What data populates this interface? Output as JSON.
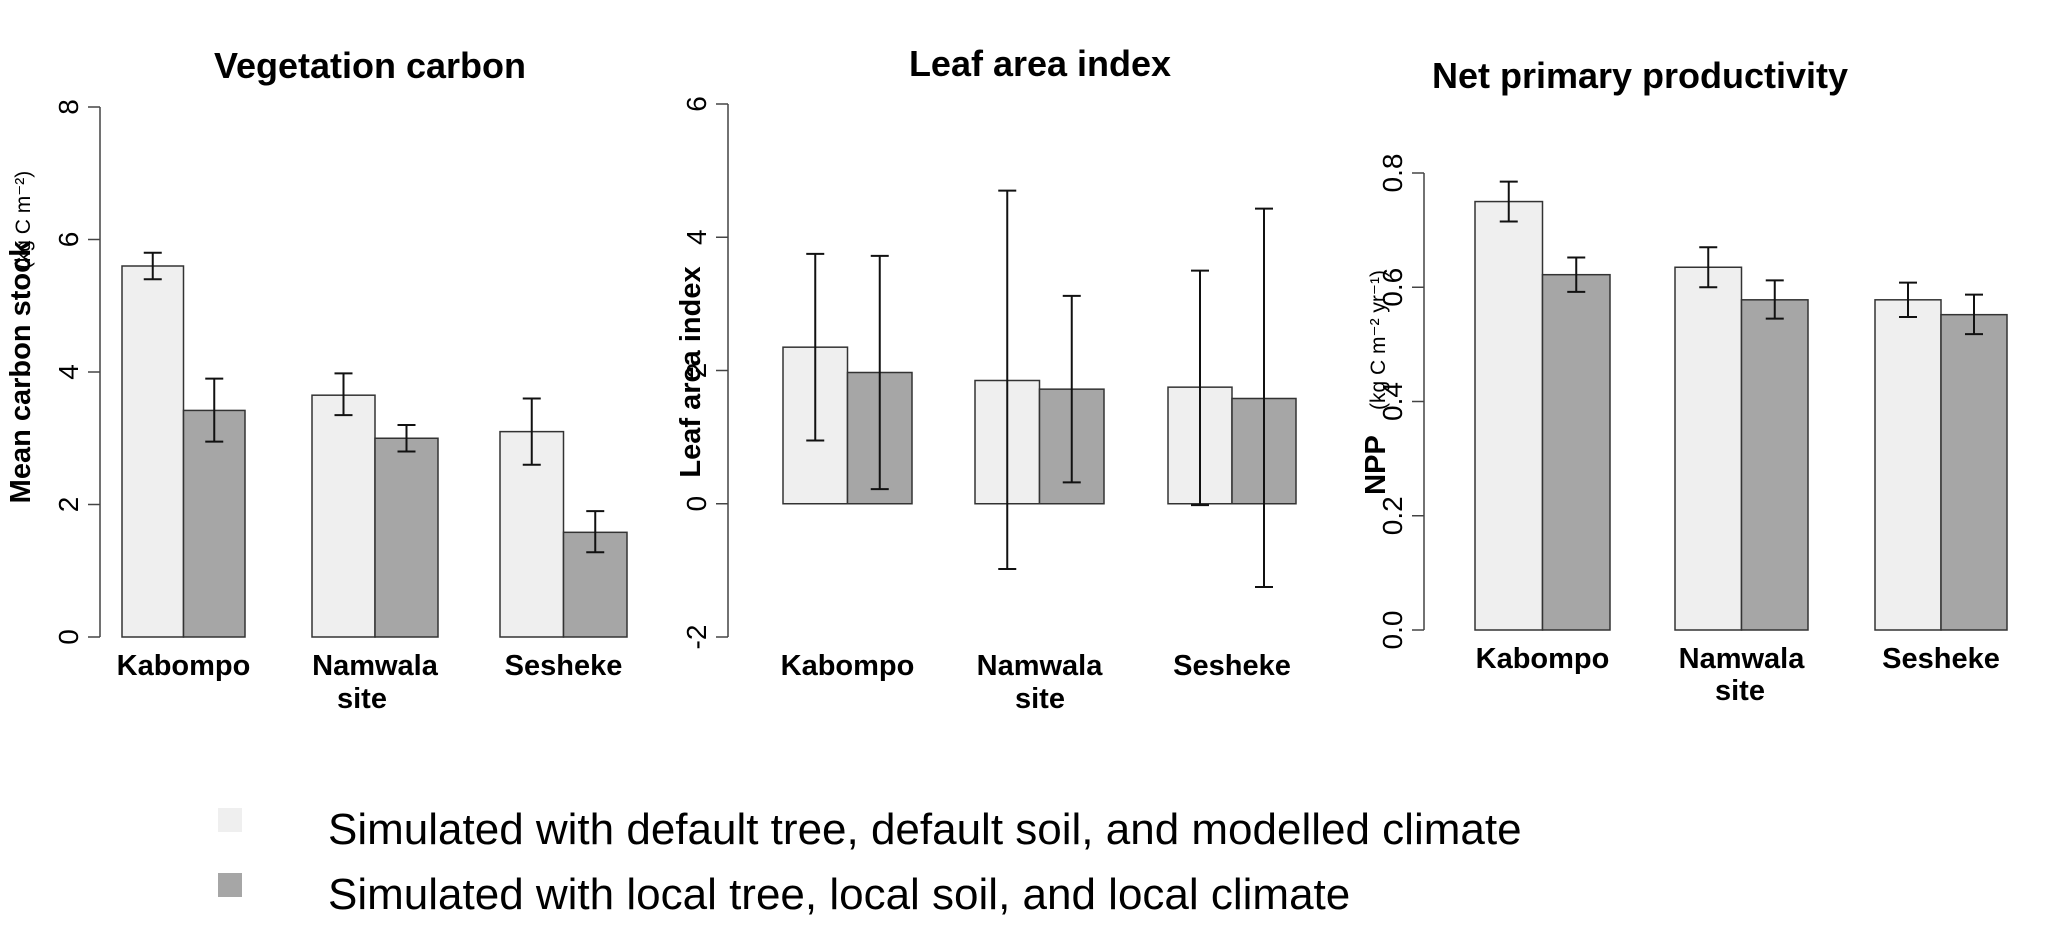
{
  "colors": {
    "default_fill": "#efefef",
    "local_fill": "#a6a6a6",
    "stroke": "#333333"
  },
  "legend": {
    "items": [
      {
        "label": "Simulated with default tree, default soil, and modelled climate",
        "color": "#efefef"
      },
      {
        "label": "Simulated with local tree, local soil, and local climate",
        "color": "#a6a6a6"
      }
    ]
  },
  "chart_data": [
    {
      "type": "bar",
      "title": "Vegetation carbon",
      "ylabel": "Mean carbon stock",
      "yunit": "(kg C m⁻²)",
      "ylim": [
        0,
        8
      ],
      "yticks": [
        "0",
        "2",
        "4",
        "6",
        "8"
      ],
      "categories": [
        "Kabompo",
        "Namwala",
        "Sesheke"
      ],
      "xlabel": "site",
      "series": [
        {
          "values": [
            5.6,
            3.65,
            3.1
          ],
          "errors": [
            [
              5.4,
              5.8
            ],
            [
              3.35,
              3.98
            ],
            [
              2.6,
              3.6
            ]
          ]
        },
        {
          "values": [
            3.42,
            3.0,
            1.58
          ],
          "errors": [
            [
              2.95,
              3.9
            ],
            [
              2.8,
              3.2
            ],
            [
              1.28,
              1.9
            ]
          ]
        }
      ]
    },
    {
      "type": "bar",
      "title": "Leaf area index",
      "ylabel": "Leaf area index",
      "yunit": "",
      "ylim": [
        -2,
        6
      ],
      "yticks": [
        "-2",
        "0",
        "2",
        "4",
        "6"
      ],
      "categories": [
        "Kabompo",
        "Namwala",
        "Sesheke"
      ],
      "xlabel": "site",
      "series": [
        {
          "values": [
            2.35,
            1.85,
            1.75
          ],
          "errors": [
            [
              0.95,
              3.75
            ],
            [
              -0.98,
              4.7
            ],
            [
              -0.02,
              3.5
            ]
          ]
        },
        {
          "values": [
            1.97,
            1.72,
            1.58
          ],
          "errors": [
            [
              0.22,
              3.72
            ],
            [
              0.32,
              3.12
            ],
            [
              -1.25,
              4.43
            ]
          ]
        }
      ]
    },
    {
      "type": "bar",
      "title": "Net primary productivity",
      "ylabel": "NPP",
      "yunit": "(kg C m⁻² yr⁻¹)",
      "ylim": [
        0,
        0.8
      ],
      "yticks": [
        "0.0",
        "0.2",
        "0.4",
        "0.6",
        "0.8"
      ],
      "categories": [
        "Kabompo",
        "Namwala",
        "Sesheke"
      ],
      "xlabel": "site",
      "series": [
        {
          "values": [
            0.75,
            0.635,
            0.578
          ],
          "errors": [
            [
              0.715,
              0.785
            ],
            [
              0.6,
              0.67
            ],
            [
              0.548,
              0.608
            ]
          ]
        },
        {
          "values": [
            0.622,
            0.578,
            0.552
          ],
          "errors": [
            [
              0.592,
              0.652
            ],
            [
              0.545,
              0.612
            ],
            [
              0.518,
              0.587
            ]
          ]
        }
      ]
    }
  ]
}
